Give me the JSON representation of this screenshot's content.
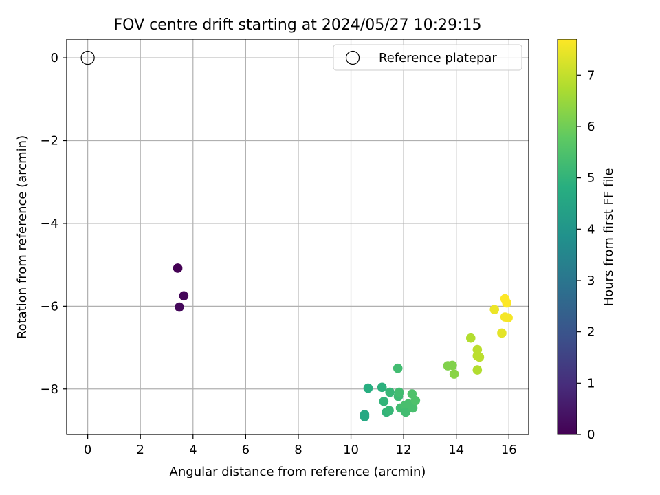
{
  "chart_data": {
    "type": "scatter",
    "title": "FOV centre drift starting at 2024/05/27 10:29:15",
    "xlabel": "Angular distance from reference (arcmin)",
    "ylabel": "Rotation from reference (arcmin)",
    "xlim": [
      -0.8,
      16.75
    ],
    "ylim": [
      -9.1,
      0.45
    ],
    "xticks": [
      0,
      2,
      4,
      6,
      8,
      10,
      12,
      14,
      16
    ],
    "yticks": [
      0,
      -2,
      -4,
      -6,
      -8
    ],
    "grid": true,
    "legend": {
      "location": "top-right",
      "entries": [
        "Reference platepar"
      ]
    },
    "reference_point": {
      "x": 0,
      "y": 0,
      "label": "Reference platepar"
    },
    "colorbar": {
      "label": "Hours from first FF file",
      "min": 0,
      "max": 7.7,
      "ticks": [
        0,
        1,
        2,
        3,
        4,
        5,
        6,
        7
      ],
      "colormap": "viridis"
    },
    "series": [
      {
        "points": [
          {
            "x": 3.42,
            "y": -5.08,
            "c": 0.0
          },
          {
            "x": 3.65,
            "y": -5.75,
            "c": 0.1
          },
          {
            "x": 3.48,
            "y": -6.02,
            "c": 0.15
          },
          {
            "x": 10.52,
            "y": -8.62,
            "c": 4.6
          },
          {
            "x": 10.52,
            "y": -8.67,
            "c": 4.6
          },
          {
            "x": 10.65,
            "y": -7.98,
            "c": 4.8
          },
          {
            "x": 11.18,
            "y": -7.96,
            "c": 4.9
          },
          {
            "x": 11.25,
            "y": -8.3,
            "c": 5.0
          },
          {
            "x": 11.35,
            "y": -8.56,
            "c": 5.0
          },
          {
            "x": 11.45,
            "y": -8.52,
            "c": 5.1
          },
          {
            "x": 11.48,
            "y": -8.08,
            "c": 5.1
          },
          {
            "x": 11.78,
            "y": -7.5,
            "c": 5.3
          },
          {
            "x": 11.8,
            "y": -8.18,
            "c": 5.2
          },
          {
            "x": 11.83,
            "y": -8.08,
            "c": 5.3
          },
          {
            "x": 11.88,
            "y": -8.46,
            "c": 5.3
          },
          {
            "x": 12.05,
            "y": -8.4,
            "c": 5.4
          },
          {
            "x": 12.08,
            "y": -8.56,
            "c": 5.3
          },
          {
            "x": 12.18,
            "y": -8.36,
            "c": 5.4
          },
          {
            "x": 12.32,
            "y": -8.12,
            "c": 5.5
          },
          {
            "x": 12.35,
            "y": -8.46,
            "c": 5.4
          },
          {
            "x": 12.45,
            "y": -8.28,
            "c": 5.5
          },
          {
            "x": 13.68,
            "y": -7.44,
            "c": 6.2
          },
          {
            "x": 13.85,
            "y": -7.43,
            "c": 6.2
          },
          {
            "x": 13.92,
            "y": -7.64,
            "c": 6.3
          },
          {
            "x": 14.55,
            "y": -6.77,
            "c": 6.8
          },
          {
            "x": 14.8,
            "y": -7.05,
            "c": 6.9
          },
          {
            "x": 14.8,
            "y": -7.2,
            "c": 6.9
          },
          {
            "x": 14.88,
            "y": -7.23,
            "c": 6.9
          },
          {
            "x": 14.8,
            "y": -7.54,
            "c": 6.8
          },
          {
            "x": 15.45,
            "y": -6.08,
            "c": 7.5
          },
          {
            "x": 15.73,
            "y": -6.65,
            "c": 7.4
          },
          {
            "x": 15.85,
            "y": -5.82,
            "c": 7.7
          },
          {
            "x": 15.92,
            "y": -5.92,
            "c": 7.7
          },
          {
            "x": 15.85,
            "y": -6.26,
            "c": 7.6
          },
          {
            "x": 15.97,
            "y": -6.28,
            "c": 7.6
          }
        ]
      }
    ]
  }
}
